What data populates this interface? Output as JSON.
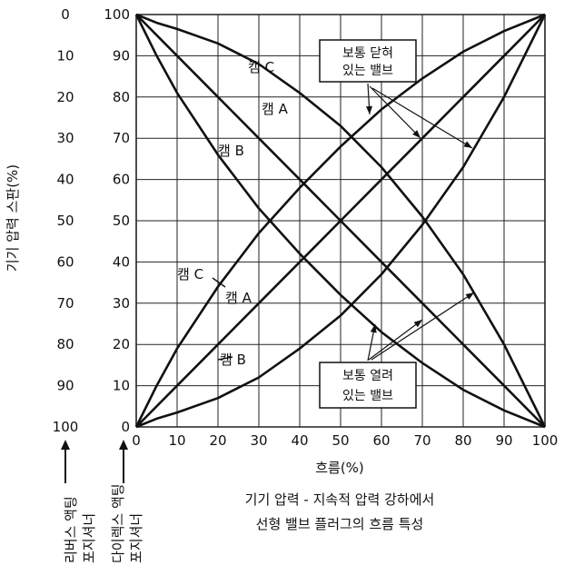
{
  "chart_data": {
    "type": "line",
    "title": "기기 압력 - 지속적 압력 강하에서 선형 밸브 플러그의 흐름 특성",
    "title_lines": [
      "기기 압력 - 지속적 압력 강하에서",
      "선형 밸브 플러그의 흐름 특성"
    ],
    "xlabel": "흐름(%)",
    "ylabel": "기기 압력 스판(%)",
    "xlim": [
      0,
      100
    ],
    "ylim": [
      0,
      100
    ],
    "x_ticks": [
      "0",
      "10",
      "20",
      "30",
      "40",
      "50",
      "60",
      "70",
      "80",
      "90",
      "100"
    ],
    "y_ticks_inner": [
      "0",
      "10",
      "20",
      "30",
      "40",
      "50",
      "60",
      "70",
      "80",
      "90",
      "100"
    ],
    "y_ticks_outer": [
      "100",
      "90",
      "80",
      "70",
      "60",
      "50",
      "40",
      "30",
      "20",
      "10",
      "0"
    ],
    "grid": true,
    "position_labels": {
      "reverse": [
        "리버스 액팅",
        "포지셔너"
      ],
      "direct": [
        "다이렉스 액팅",
        "포지셔너"
      ]
    },
    "callouts": {
      "normally_closed": [
        "보통 닫혀",
        "있는 밸브"
      ],
      "normally_open": [
        "보통 열려",
        "있는 밸브"
      ]
    },
    "series": [
      {
        "name": "캠 C",
        "group": "normally_closed",
        "x": [
          0,
          5,
          10,
          20,
          30,
          40,
          50,
          60,
          70,
          80,
          90,
          100
        ],
        "y": [
          100,
          98,
          96.5,
          93,
          88,
          81,
          73,
          63,
          51,
          37,
          20,
          0
        ]
      },
      {
        "name": "캠 A",
        "group": "normally_closed",
        "x": [
          0,
          10,
          20,
          30,
          40,
          50,
          60,
          70,
          80,
          90,
          100
        ],
        "y": [
          100,
          90,
          80,
          70,
          60,
          50,
          40,
          30,
          20,
          10,
          0
        ]
      },
      {
        "name": "캠 B",
        "group": "normally_closed",
        "x": [
          0,
          5,
          10,
          20,
          30,
          40,
          50,
          60,
          70,
          80,
          90,
          100
        ],
        "y": [
          100,
          90,
          81,
          66,
          53,
          42,
          32,
          23,
          15.5,
          9,
          4,
          0
        ]
      },
      {
        "name": "캠 C",
        "group": "normally_open",
        "x": [
          0,
          5,
          10,
          20,
          30,
          40,
          50,
          60,
          70,
          80,
          90,
          100
        ],
        "y": [
          0,
          10,
          19,
          34,
          47,
          58,
          68,
          77,
          84.5,
          91,
          96,
          100
        ]
      },
      {
        "name": "캠 A",
        "group": "normally_open",
        "x": [
          0,
          10,
          20,
          30,
          40,
          50,
          60,
          70,
          80,
          90,
          100
        ],
        "y": [
          0,
          10,
          20,
          30,
          40,
          50,
          60,
          70,
          80,
          90,
          100
        ]
      },
      {
        "name": "캠 B",
        "group": "normally_open",
        "x": [
          0,
          5,
          10,
          20,
          30,
          40,
          50,
          60,
          70,
          80,
          90,
          100
        ],
        "y": [
          0,
          2,
          3.5,
          7,
          12,
          19,
          27,
          37,
          49,
          63,
          80,
          100
        ]
      }
    ],
    "colors": {
      "line": "#111111",
      "grid": "#222222",
      "background": "#ffffff"
    }
  }
}
